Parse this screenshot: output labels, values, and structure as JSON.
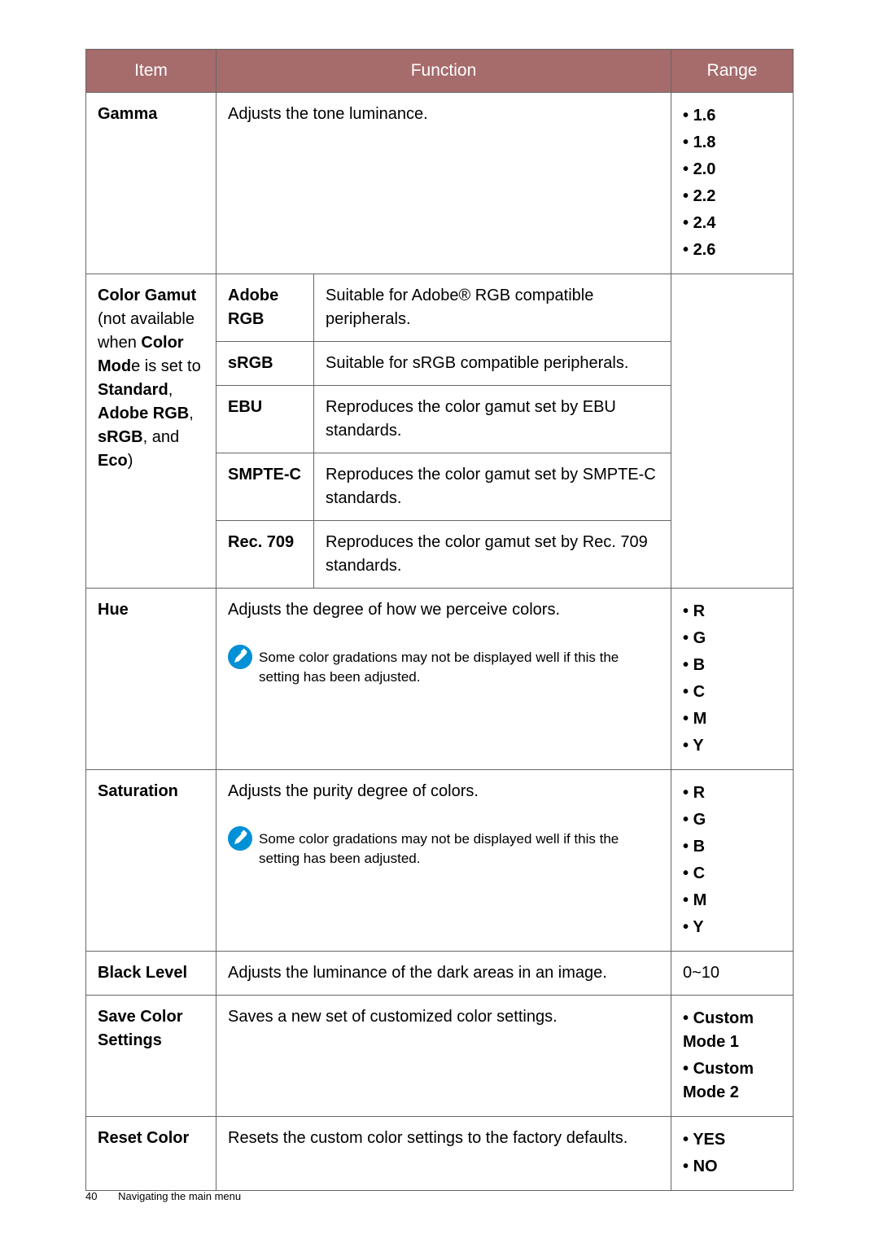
{
  "headers": {
    "item": "Item",
    "function": "Function",
    "range": "Range"
  },
  "rows": {
    "gamma": {
      "item": "Gamma",
      "function": "Adjusts the tone luminance.",
      "range": [
        "1.6",
        "1.8",
        "2.0",
        "2.2",
        "2.4",
        "2.6"
      ]
    },
    "colorgamut": {
      "item_html": "<span class='bold'>Color Gamut</span><br>(not available when <span class='bold'>Color Mod</span>e is set to <span class='bold'>Standard</span>, <span class='bold'>Adobe RGB</span>, <span class='bold'>sRGB</span>, and <span class='bold'>Eco</span>)",
      "sub": [
        {
          "k": "Adobe RGB",
          "v": "Suitable for Adobe® RGB compatible peripherals."
        },
        {
          "k": "sRGB",
          "v": "Suitable for sRGB compatible peripherals."
        },
        {
          "k": "EBU",
          "v": "Reproduces the color gamut set by EBU standards."
        },
        {
          "k": "SMPTE-C",
          "v": "Reproduces the color gamut set by SMPTE-C standards."
        },
        {
          "k": "Rec. 709",
          "v": "Reproduces the color gamut set by Rec. 709 standards."
        }
      ]
    },
    "hue": {
      "item": "Hue",
      "func": "Adjusts the degree of how we perceive colors.",
      "note": "Some color gradations may not be displayed well if this the setting has been adjusted.",
      "range": [
        "R",
        "G",
        "B",
        "C",
        "M",
        "Y"
      ]
    },
    "saturation": {
      "item": "Saturation",
      "func": "Adjusts the purity degree of colors.",
      "note": "Some color gradations may not be displayed well if this the setting has been adjusted.",
      "range": [
        "R",
        "G",
        "B",
        "C",
        "M",
        "Y"
      ]
    },
    "black": {
      "item": "Black Level",
      "func": "Adjusts the luminance of the dark areas in an image.",
      "range": "0~10"
    },
    "save": {
      "item": "Save Color Settings",
      "func": "Saves a new set of customized color settings.",
      "range": [
        "Custom Mode 1",
        "Custom Mode 2"
      ]
    },
    "reset": {
      "item": "Reset Color",
      "func": "Resets the custom color settings to the factory defaults.",
      "range": [
        "YES",
        "NO"
      ]
    }
  },
  "footer": {
    "page": "40",
    "text": "Navigating the main menu"
  },
  "colors": {
    "headerbg": "#a66b6b",
    "iconbg": "#0090d6",
    "iconfg": "#ffffff"
  }
}
